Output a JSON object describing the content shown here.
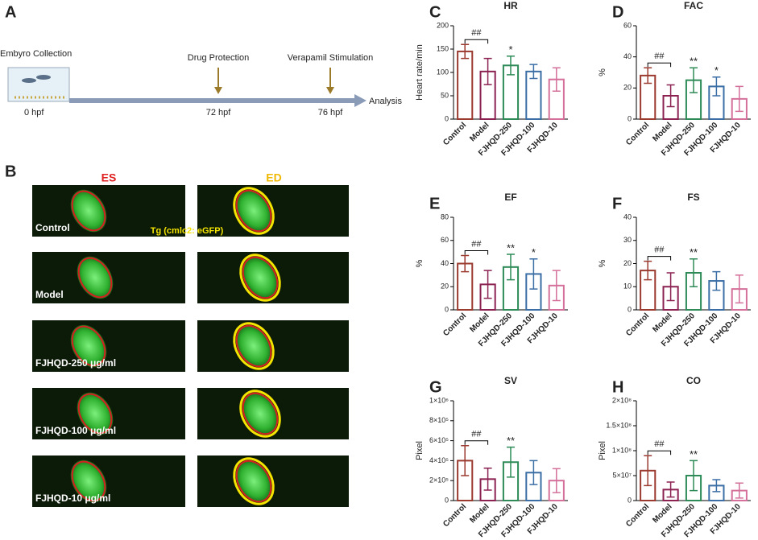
{
  "panel_a": {
    "label": "A",
    "start": "Embyro Collection",
    "start_time": "0 hpf",
    "steps": [
      {
        "label": "Drug Protection",
        "time": "72 hpf"
      },
      {
        "label": "Verapamil Stimulation",
        "time": "76 hpf"
      }
    ],
    "end": "Analysis"
  },
  "panel_b": {
    "label": "B",
    "columns": [
      "ES",
      "ED"
    ],
    "reporter": "Tg (cmlc2: eGFP)",
    "rows": [
      "Control",
      "Model",
      "FJHQD-250 μg/ml",
      "FJHQD-100 μg/ml",
      "FJHQD-10 μg/ml"
    ]
  },
  "chart_data": [
    {
      "type": "bar",
      "panel": "C",
      "title": "HR",
      "y_label": "Heart rate/min",
      "categories": [
        "Control",
        "Model",
        "FJHQD-250",
        "FJHQD-100",
        "FJHQD-10"
      ],
      "values": [
        145,
        102,
        115,
        102,
        85
      ],
      "errors": [
        15,
        28,
        20,
        15,
        25
      ],
      "colors": [
        "#9b3a2f",
        "#8b2252",
        "#2e8b57",
        "#3a6ea5",
        "#d4709a"
      ],
      "ylim": [
        0,
        200
      ],
      "yticks": [
        0,
        50,
        100,
        150,
        200
      ],
      "annotations": [
        {
          "label": "##",
          "between": [
            "Control",
            "Model"
          ]
        },
        {
          "label": "*",
          "over": "FJHQD-250"
        }
      ]
    },
    {
      "type": "bar",
      "panel": "D",
      "title": "FAC",
      "y_label": "%",
      "categories": [
        "Control",
        "Model",
        "FJHQD-250",
        "FJHQD-100",
        "FJHQD-10"
      ],
      "values": [
        28,
        15,
        25,
        21,
        13
      ],
      "errors": [
        5,
        7,
        8,
        6,
        8
      ],
      "colors": [
        "#9b3a2f",
        "#8b2252",
        "#2e8b57",
        "#3a6ea5",
        "#d4709a"
      ],
      "ylim": [
        0,
        60
      ],
      "yticks": [
        0,
        20,
        40,
        60
      ],
      "annotations": [
        {
          "label": "##",
          "between": [
            "Control",
            "Model"
          ]
        },
        {
          "label": "**",
          "over": "FJHQD-250"
        },
        {
          "label": "*",
          "over": "FJHQD-100"
        }
      ]
    },
    {
      "type": "bar",
      "panel": "E",
      "title": "EF",
      "y_label": "%",
      "categories": [
        "Control",
        "Model",
        "FJHQD-250",
        "FJHQD-100",
        "FJHQD-10"
      ],
      "values": [
        40,
        22,
        37,
        31,
        21
      ],
      "errors": [
        7,
        12,
        11,
        13,
        13
      ],
      "colors": [
        "#9b3a2f",
        "#8b2252",
        "#2e8b57",
        "#3a6ea5",
        "#d4709a"
      ],
      "ylim": [
        0,
        80
      ],
      "yticks": [
        0,
        20,
        40,
        60,
        80
      ],
      "annotations": [
        {
          "label": "##",
          "between": [
            "Control",
            "Model"
          ]
        },
        {
          "label": "**",
          "over": "FJHQD-250"
        },
        {
          "label": "*",
          "over": "FJHQD-100"
        }
      ]
    },
    {
      "type": "bar",
      "panel": "F",
      "title": "FS",
      "y_label": "%",
      "categories": [
        "Control",
        "Model",
        "FJHQD-250",
        "FJHQD-100",
        "FJHQD-10"
      ],
      "values": [
        17,
        10,
        16,
        12.5,
        9
      ],
      "errors": [
        4,
        6,
        6,
        4,
        6
      ],
      "colors": [
        "#9b3a2f",
        "#8b2252",
        "#2e8b57",
        "#3a6ea5",
        "#d4709a"
      ],
      "ylim": [
        0,
        40
      ],
      "yticks": [
        0,
        10,
        20,
        30,
        40
      ],
      "annotations": [
        {
          "label": "##",
          "between": [
            "Control",
            "Model"
          ]
        },
        {
          "label": "**",
          "over": "FJHQD-250"
        }
      ]
    },
    {
      "type": "bar",
      "panel": "G",
      "title": "SV",
      "y_label": "Pixel",
      "categories": [
        "Control",
        "Model",
        "FJHQD-250",
        "FJHQD-100",
        "FJHQD-10"
      ],
      "values": [
        400000,
        215000,
        385000,
        280000,
        200000
      ],
      "errors": [
        150000,
        110000,
        150000,
        120000,
        120000
      ],
      "colors": [
        "#9b3a2f",
        "#8b2252",
        "#2e8b57",
        "#3a6ea5",
        "#d4709a"
      ],
      "ylim": [
        0,
        1000000
      ],
      "yticks": [
        0,
        {
          "value": 200000,
          "label": "2×10⁵"
        },
        {
          "value": 400000,
          "label": "4×10⁵"
        },
        {
          "value": 600000,
          "label": "6×10⁵"
        },
        {
          "value": 800000,
          "label": "8×10⁵"
        },
        {
          "value": 1000000,
          "label": "1×10⁶"
        }
      ],
      "annotations": [
        {
          "label": "##",
          "between": [
            "Control",
            "Model"
          ]
        },
        {
          "label": "**",
          "over": "FJHQD-250"
        }
      ]
    },
    {
      "type": "bar",
      "panel": "H",
      "title": "CO",
      "y_label": "Pixel",
      "categories": [
        "Control",
        "Model",
        "FJHQD-250",
        "FJHQD-100",
        "FJHQD-10"
      ],
      "values": [
        60000000,
        22000000,
        50000000,
        30000000,
        20000000
      ],
      "errors": [
        30000000,
        15000000,
        30000000,
        12000000,
        15000000
      ],
      "colors": [
        "#9b3a2f",
        "#8b2252",
        "#2e8b57",
        "#3a6ea5",
        "#d4709a"
      ],
      "ylim": [
        0,
        200000000
      ],
      "yticks": [
        0,
        {
          "value": 50000000,
          "label": "5×10⁷"
        },
        {
          "value": 100000000,
          "label": "1×10⁸"
        },
        {
          "value": 150000000,
          "label": "1.5×10⁸"
        },
        {
          "value": 200000000,
          "label": "2×10⁸"
        }
      ],
      "annotations": [
        {
          "label": "##",
          "between": [
            "Control",
            "Model"
          ]
        },
        {
          "label": "**",
          "over": "FJHQD-250"
        }
      ]
    }
  ]
}
